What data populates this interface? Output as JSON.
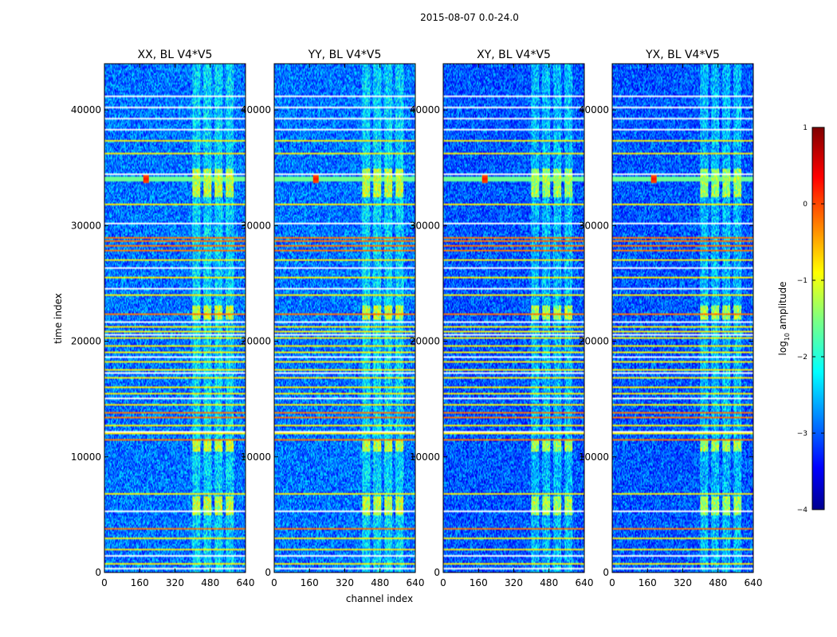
{
  "chart_data": {
    "type": "heatmap",
    "suptitle": "2015-08-07 0.0-24.0",
    "xlabel": "channel index",
    "ylabel": "time index",
    "xlim": [
      0,
      640
    ],
    "ylim": [
      0,
      44000
    ],
    "xticks": [
      0,
      160,
      320,
      480,
      640
    ],
    "yticks": [
      0,
      10000,
      20000,
      30000,
      40000
    ],
    "panels": [
      {
        "title": "XX, BL V4*V5",
        "pol": "XX"
      },
      {
        "title": "YY, BL V4*V5",
        "pol": "YY"
      },
      {
        "title": "XY, BL V4*V5",
        "pol": "XY"
      },
      {
        "title": "YX, BL V4*V5",
        "pol": "YX"
      }
    ],
    "colorbar": {
      "label": "log10 amplitude",
      "label_main": "log",
      "label_sub": "10",
      "label_tail": " amplitude",
      "range": [
        -4,
        1
      ],
      "ticks": [
        "1",
        "0",
        "−1",
        "−2",
        "−3",
        "−4"
      ],
      "tick_values": [
        1,
        0,
        -1,
        -2,
        -3,
        -4
      ],
      "colormap": "jet"
    },
    "features": {
      "background_level": -2.8,
      "rfi_channel_range": [
        400,
        600
      ],
      "strong_rfi_rows": [
        3800,
        11500,
        13400,
        13800,
        22400,
        27800,
        28300,
        28700,
        29000
      ],
      "moderate_rfi_rows": [
        800,
        2000,
        2900,
        6800,
        12000,
        12700,
        14500,
        15500,
        16000,
        16800,
        17500,
        18200,
        19000,
        19600,
        20300,
        20800,
        21300,
        24000,
        25500,
        27000,
        31800,
        36200,
        37300
      ],
      "white_gap_rows": [
        300,
        1400,
        5300,
        12200,
        15000,
        17200,
        18600,
        20600,
        21700,
        24600,
        26400,
        30200,
        34400,
        38300,
        39300,
        40200,
        41200
      ],
      "bright_band_rows": [
        [
          5000,
          6500
        ],
        [
          10500,
          11300
        ],
        [
          22000,
          23000
        ],
        [
          32500,
          34800
        ]
      ],
      "point_source": {
        "channel": 190,
        "time": 34000
      }
    }
  }
}
